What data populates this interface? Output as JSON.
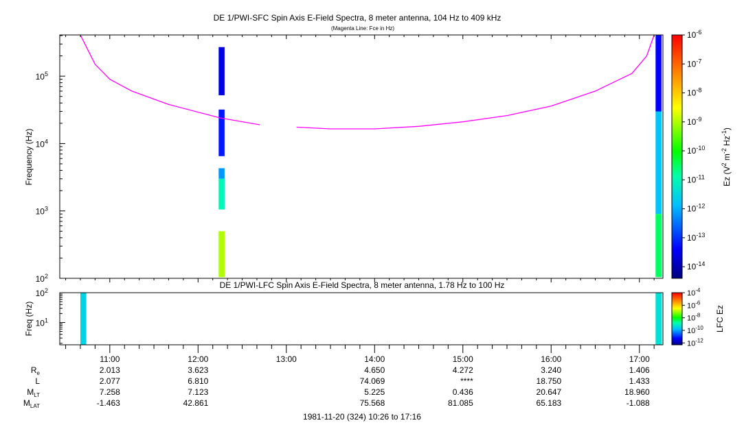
{
  "chart_data": [
    {
      "type": "heatmap",
      "title": "DE 1/PWI-SFC  Spin Axis E-Field Spectra, 8 meter antenna, 104 Hz to 409 kHz",
      "subtitle": "(Magenta Line: Fce in Hz)",
      "ylabel": "Frequency (Hz)",
      "y_scale": "log",
      "ylim": [
        100,
        409000
      ],
      "y_ticks": [
        {
          "v": 100,
          "label": "10",
          "exp": "2"
        },
        {
          "v": 1000,
          "label": "10",
          "exp": "3"
        },
        {
          "v": 10000,
          "label": "10",
          "exp": "4"
        },
        {
          "v": 100000,
          "label": "10",
          "exp": "5"
        }
      ],
      "xlim": [
        "10:26",
        "17:16"
      ],
      "colorbar": {
        "label_parts": [
          "Ez (V",
          "2",
          " m",
          "-2",
          " Hz",
          "-1",
          ")"
        ],
        "scale": "log",
        "range_exp": [
          -14.4,
          -6
        ],
        "ticks": [
          {
            "label": "10",
            "exp": "-6"
          },
          {
            "label": "10",
            "exp": "-7"
          },
          {
            "label": "10",
            "exp": "-8"
          },
          {
            "label": "10",
            "exp": "-9"
          },
          {
            "label": "10",
            "exp": "-10"
          },
          {
            "label": "10",
            "exp": "-11"
          },
          {
            "label": "10",
            "exp": "-12"
          },
          {
            "label": "10",
            "exp": "-13"
          },
          {
            "label": "10",
            "exp": "-14"
          }
        ]
      },
      "fce_line": {
        "color": "#ff00ff",
        "segments": [
          [
            [
              "10:40",
              409000
            ],
            [
              "10:50",
              150000
            ],
            [
              "11:00",
              90000
            ],
            [
              "11:15",
              60000
            ],
            [
              "11:40",
              38000
            ],
            [
              "12:15",
              24000
            ],
            [
              "12:42",
              19000
            ]
          ],
          [
            [
              "13:07",
              17500
            ],
            [
              "13:30",
              16500
            ],
            [
              "14:00",
              16500
            ],
            [
              "14:30",
              18000
            ],
            [
              "15:00",
              21000
            ],
            [
              "15:30",
              26000
            ],
            [
              "16:00",
              36000
            ],
            [
              "16:30",
              60000
            ],
            [
              "16:55",
              110000
            ],
            [
              "17:05",
              200000
            ],
            [
              "17:10",
              409000
            ]
          ]
        ]
      },
      "blocks": [
        {
          "time": "12:16",
          "width_min": 4,
          "f_low": 52000,
          "f_high": 270000,
          "log_level": -13.6
        },
        {
          "time": "12:16",
          "width_min": 4,
          "f_low": 6500,
          "f_high": 32000,
          "log_level": -13.2
        },
        {
          "time": "12:16",
          "width_min": 4,
          "f_low": 3000,
          "f_high": 4300,
          "log_level": -12.2
        },
        {
          "time": "12:16",
          "width_min": 4,
          "f_low": 1050,
          "f_high": 3000,
          "log_level": -11.0
        },
        {
          "time": "12:16",
          "width_min": 4,
          "f_low": 104,
          "f_high": 500,
          "log_level": -9.0
        },
        {
          "time": "17:13",
          "width_min": 4,
          "f_low": 30000,
          "f_high": 409000,
          "log_level": -13.4
        },
        {
          "time": "17:13",
          "width_min": 4,
          "f_low": 900,
          "f_high": 30000,
          "log_level": -11.8
        },
        {
          "time": "17:13",
          "width_min": 4,
          "f_low": 104,
          "f_high": 900,
          "log_level": -10.5
        }
      ]
    },
    {
      "type": "heatmap",
      "title": "DE 1/PWI-LFC  Spin Axis E-Field Spectra, 8 meter antenna, 1.78 Hz to 100 Hz",
      "ylabel": "Freq (Hz)",
      "y_scale": "log",
      "ylim": [
        1.78,
        100
      ],
      "y_ticks": [
        {
          "v": 10,
          "label": "10",
          "exp": "1"
        },
        {
          "v": 100,
          "label": "10",
          "exp": "2"
        }
      ],
      "xlim": [
        "10:26",
        "17:16"
      ],
      "colorbar": {
        "label": "LFC Ez",
        "scale": "log",
        "range_exp": [
          -12.3,
          -4
        ],
        "ticks": [
          {
            "label": "10",
            "exp": "-4"
          },
          {
            "label": "10",
            "exp": "-6"
          },
          {
            "label": "10",
            "exp": "-8"
          },
          {
            "label": "10",
            "exp": "-10"
          },
          {
            "label": "10",
            "exp": "-12"
          }
        ]
      },
      "blocks": [
        {
          "time": "10:42",
          "width_min": 4,
          "f_low": 1.78,
          "f_high": 100,
          "log_level": -9.5
        },
        {
          "time": "17:13",
          "width_min": 4,
          "f_low": 1.78,
          "f_high": 100,
          "log_level": -9.3
        }
      ]
    }
  ],
  "time_axis": {
    "ticks": [
      "11:00",
      "12:00",
      "13:00",
      "14:00",
      "15:00",
      "16:00",
      "17:00"
    ]
  },
  "ephemeris": {
    "row_labels": [
      {
        "main": "R",
        "sub": "e"
      },
      {
        "main": "L",
        "sub": ""
      },
      {
        "main": "M",
        "sub": "LT"
      },
      {
        "main": "M",
        "sub": "LAT"
      }
    ],
    "columns": [
      {
        "time": "11:00",
        "values": [
          "2.013",
          "2.077",
          "7.258",
          "-1.463"
        ]
      },
      {
        "time": "12:00",
        "values": [
          "3.623",
          "6.810",
          "7.123",
          "42.861"
        ]
      },
      {
        "time": "14:00",
        "values": [
          "4.650",
          "74.069",
          "5.225",
          "75.568"
        ]
      },
      {
        "time": "15:00",
        "values": [
          "4.272",
          "****",
          "0.436",
          "81.085"
        ]
      },
      {
        "time": "16:00",
        "values": [
          "3.240",
          "18.750",
          "20.647",
          "65.183"
        ]
      },
      {
        "time": "17:00",
        "values": [
          "1.406",
          "1.433",
          "18.960",
          "-1.088"
        ]
      }
    ]
  },
  "footer": "1981-11-20 (324) 10:26 to 17:16"
}
